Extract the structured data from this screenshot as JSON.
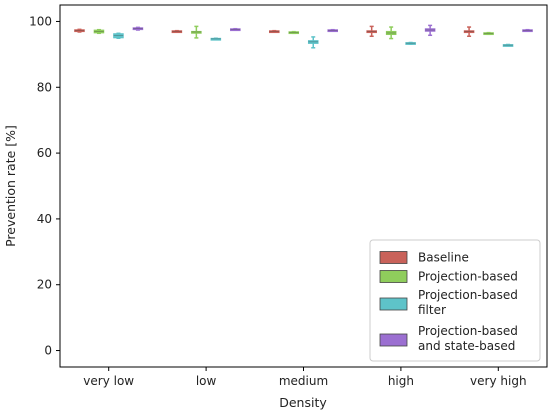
{
  "chart_data": {
    "type": "box",
    "xlabel": "Density",
    "ylabel": "Prevention rate [%]",
    "ylim": [
      -5,
      105
    ],
    "yticks": [
      0,
      20,
      40,
      60,
      80,
      100
    ],
    "categories": [
      "very low",
      "low",
      "medium",
      "high",
      "very high"
    ],
    "grid": false,
    "legend_position": "bottom-right",
    "series": [
      {
        "name": "Baseline",
        "color": "#c9625a",
        "boxes": [
          {
            "q1": 96.9,
            "median": 97.2,
            "q3": 97.5,
            "whisker_low": 96.8,
            "whisker_high": 97.6
          },
          {
            "q1": 96.8,
            "median": 97.0,
            "q3": 97.2,
            "whisker_low": 96.8,
            "whisker_high": 97.2
          },
          {
            "q1": 96.8,
            "median": 97.0,
            "q3": 97.2,
            "whisker_low": 96.8,
            "whisker_high": 97.2
          },
          {
            "q1": 96.8,
            "median": 97.0,
            "q3": 97.2,
            "whisker_low": 95.5,
            "whisker_high": 98.5
          },
          {
            "q1": 96.8,
            "median": 97.0,
            "q3": 97.2,
            "whisker_low": 95.5,
            "whisker_high": 98.3
          }
        ]
      },
      {
        "name": "Projection-based",
        "color": "#8fcd5c",
        "boxes": [
          {
            "q1": 96.5,
            "median": 97.0,
            "q3": 97.4,
            "whisker_low": 96.4,
            "whisker_high": 97.5
          },
          {
            "q1": 96.5,
            "median": 96.8,
            "q3": 97.0,
            "whisker_low": 95.0,
            "whisker_high": 98.5
          },
          {
            "q1": 96.4,
            "median": 96.7,
            "q3": 96.9,
            "whisker_low": 96.4,
            "whisker_high": 96.9
          },
          {
            "q1": 96.0,
            "median": 96.5,
            "q3": 97.0,
            "whisker_low": 94.8,
            "whisker_high": 98.3
          },
          {
            "q1": 96.1,
            "median": 96.4,
            "q3": 96.6,
            "whisker_low": 96.1,
            "whisker_high": 96.6
          }
        ]
      },
      {
        "name": "Projection-based filter",
        "color": "#5ec3c9",
        "boxes": [
          {
            "q1": 95.0,
            "median": 95.7,
            "q3": 96.3,
            "whisker_low": 94.9,
            "whisker_high": 96.4
          },
          {
            "q1": 94.5,
            "median": 94.7,
            "q3": 94.9,
            "whisker_low": 94.5,
            "whisker_high": 94.9
          },
          {
            "q1": 93.3,
            "median": 93.8,
            "q3": 94.2,
            "whisker_low": 92.0,
            "whisker_high": 95.3
          },
          {
            "q1": 93.1,
            "median": 93.4,
            "q3": 93.6,
            "whisker_low": 93.1,
            "whisker_high": 93.6
          },
          {
            "q1": 92.6,
            "median": 92.8,
            "q3": 93.0,
            "whisker_low": 92.6,
            "whisker_high": 93.0
          }
        ]
      },
      {
        "name": "Projection-based and state-based",
        "color": "#9b6fd1",
        "boxes": [
          {
            "q1": 97.5,
            "median": 97.8,
            "q3": 98.1,
            "whisker_low": 97.4,
            "whisker_high": 98.2
          },
          {
            "q1": 97.4,
            "median": 97.6,
            "q3": 97.8,
            "whisker_low": 97.4,
            "whisker_high": 97.8
          },
          {
            "q1": 97.1,
            "median": 97.3,
            "q3": 97.5,
            "whisker_low": 97.1,
            "whisker_high": 97.5
          },
          {
            "q1": 97.0,
            "median": 97.4,
            "q3": 97.8,
            "whisker_low": 95.8,
            "whisker_high": 98.8
          },
          {
            "q1": 97.1,
            "median": 97.3,
            "q3": 97.5,
            "whisker_low": 97.1,
            "whisker_high": 97.5
          }
        ]
      }
    ]
  },
  "legend": {
    "entries": [
      {
        "lines": [
          "Baseline"
        ]
      },
      {
        "lines": [
          "Projection-based"
        ]
      },
      {
        "lines": [
          "Projection-based",
          "filter"
        ]
      },
      {
        "lines": [
          "Projection-based",
          "and state-based"
        ]
      }
    ]
  }
}
